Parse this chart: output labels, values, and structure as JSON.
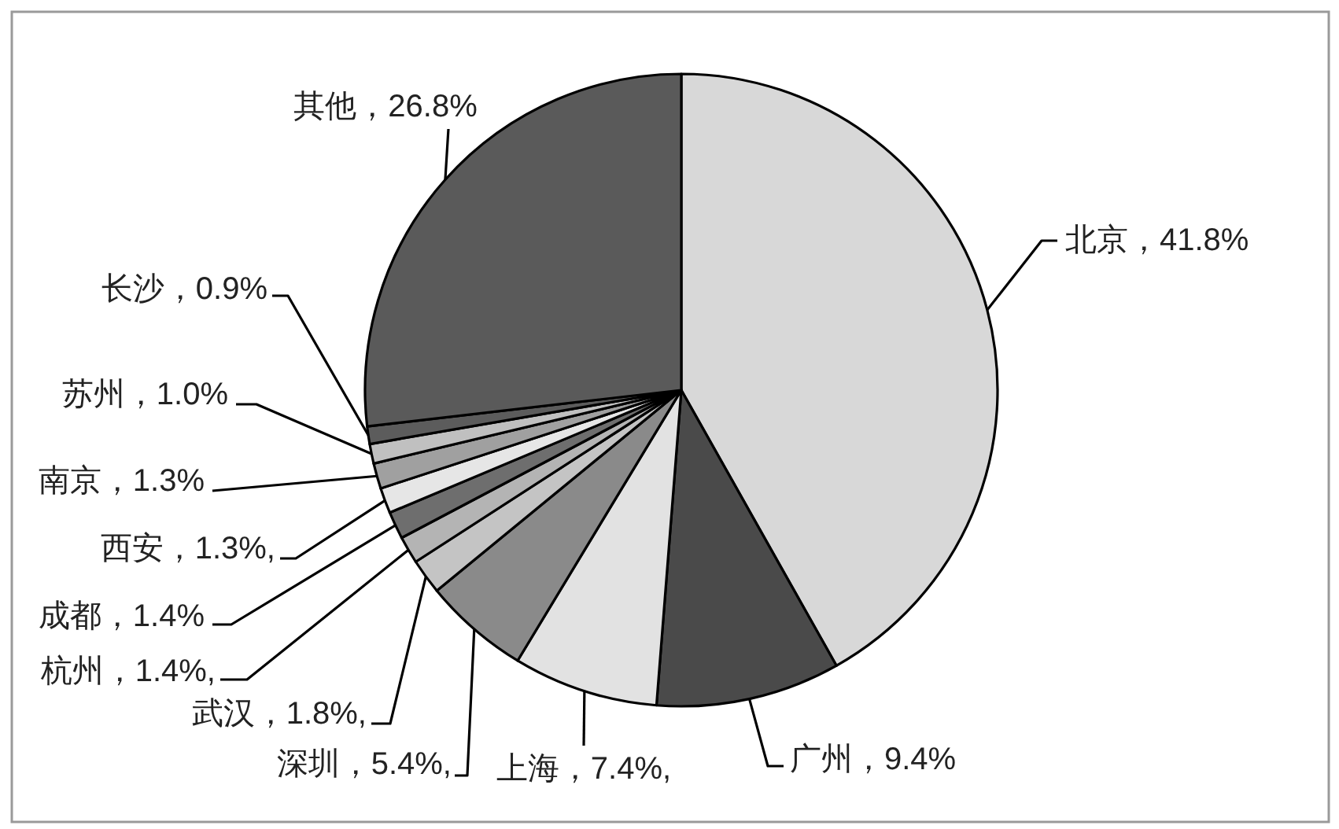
{
  "chart_data": {
    "type": "pie",
    "categories": [
      "北京",
      "广州",
      "上海",
      "深圳",
      "武汉",
      "杭州",
      "成都",
      "西安",
      "南京",
      "苏州",
      "长沙",
      "其他"
    ],
    "values": [
      41.8,
      9.4,
      7.4,
      5.4,
      1.8,
      1.4,
      1.4,
      1.3,
      1.3,
      1.0,
      0.9,
      26.8
    ],
    "value_labels": [
      "，41.8%",
      "，9.4%",
      "，7.4%,",
      "，5.4%,",
      "，1.8%,",
      "，1.4%,",
      "，1.4%",
      "，1.3%,",
      "，1.3%",
      "，1.0%",
      "，0.9%",
      "，26.8%"
    ],
    "colors": [
      "#d8d8d8",
      "#4a4a4a",
      "#e2e2e2",
      "#8a8a8a",
      "#c4c4c4",
      "#b4b4b4",
      "#6e6e6e",
      "#e6e6e6",
      "#a0a0a0",
      "#c0c0c0",
      "#5c5c5c",
      "#5a5a5a"
    ]
  }
}
